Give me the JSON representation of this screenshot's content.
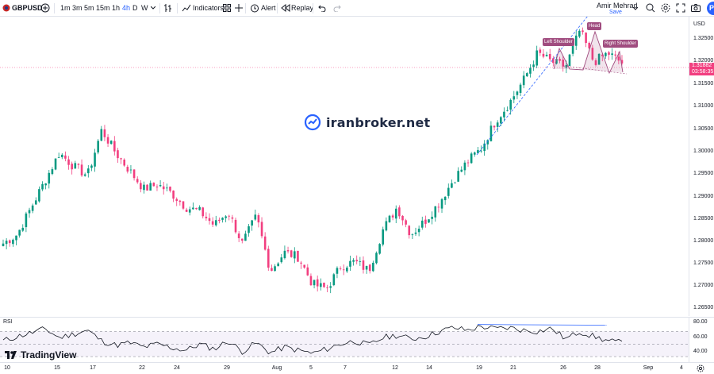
{
  "toolbar": {
    "symbol": "GBPUSD",
    "timeframes": [
      "1m",
      "3m",
      "5m",
      "15m",
      "1h",
      "4h",
      "D",
      "W"
    ],
    "active_timeframe": "4h",
    "indicators_label": "Indicators",
    "alert_label": "Alert",
    "replay_label": "Replay",
    "user_name": "Amir Mehrad",
    "user_status": "Save",
    "publish_label": "Pu"
  },
  "price_axis": {
    "currency": "USD",
    "ticks": [
      "1.32500",
      "1.32000",
      "1.31500",
      "1.31000",
      "1.30500",
      "1.30000",
      "1.29500",
      "1.29000",
      "1.28500",
      "1.28000",
      "1.27500",
      "1.27000",
      "1.26500"
    ],
    "current_price": "1.31882",
    "countdown": "03:58:35"
  },
  "rsi": {
    "title": "RSI",
    "levels": [
      "80.00",
      "60.00",
      "40.00"
    ]
  },
  "time_axis": {
    "labels": [
      "10",
      "15",
      "17",
      "22",
      "24",
      "29",
      "Aug",
      "5",
      "7",
      "12",
      "14",
      "19",
      "21",
      "26",
      "28",
      "Sep",
      "4"
    ]
  },
  "pattern_labels": {
    "left_shoulder": "Left Shoulder",
    "head": "Head",
    "right_shoulder": "Right Shoulder"
  },
  "watermark": "iranbroker.net",
  "brand": "TradingView",
  "colors": {
    "up": "#26a69a",
    "up_alt": "#089981",
    "down": "#f23f80",
    "accent": "#2962ff",
    "pattern": "#a04c7f",
    "rsi_line": "#131722"
  },
  "chart_data": {
    "type": "candlestick",
    "symbol": "GBPUSD",
    "interval": "4h",
    "ylim": [
      1.263,
      1.329
    ],
    "approx_closes": [
      1.279,
      1.281,
      1.287,
      1.293,
      1.299,
      1.296,
      1.294,
      1.304,
      1.299,
      1.295,
      1.291,
      1.292,
      1.29,
      1.287,
      1.286,
      1.283,
      1.286,
      1.279,
      1.285,
      1.273,
      1.277,
      1.276,
      1.27,
      1.269,
      1.274,
      1.275,
      1.273,
      1.282,
      1.287,
      1.281,
      1.284,
      1.288,
      1.293,
      1.297,
      1.3,
      1.306,
      1.31,
      1.315,
      1.321,
      1.319,
      1.318,
      1.326,
      1.319,
      1.321,
      1.3188
    ],
    "rsi_levels": [
      80,
      60,
      40
    ]
  }
}
